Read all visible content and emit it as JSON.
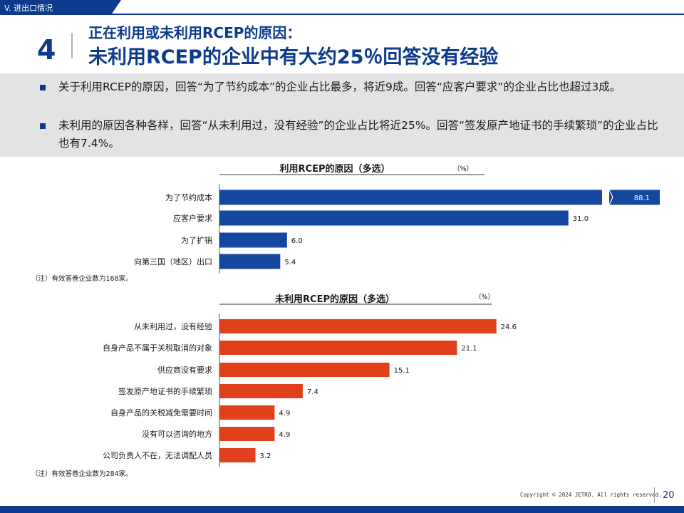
{
  "header": {
    "section_tab": "V. 进出口情况",
    "section_number": "4",
    "title_line1": "正在利用或未利用RCEP的原因：",
    "title_line2": "未利用RCEP的企业中有大约25％回答没有经验"
  },
  "summary": {
    "bullets": [
      "关于利用RCEP的原因，回答“为了节约成本”的企业占比最多，将近9成。回答“应客户要求”的企业占比也超过3成。",
      "未利用的原因各种各样，回答“从未利用过，没有经验”的企业占比将近25%。回答“签发原产地证书的手续繁琐”的企业占比也有7.4%。"
    ]
  },
  "colors": {
    "brand_blue": "#0d3a8c",
    "bar_blue": "#1546a0",
    "bar_red": "#e0401c"
  },
  "chart_data": [
    {
      "type": "bar",
      "orientation": "horizontal",
      "title": "利用RCEP的原因（多选）",
      "unit": "（%）",
      "categories": [
        "为了节约成本",
        "应客户要求",
        "为了扩销",
        "向第三国（地区）出口"
      ],
      "values": [
        88.1,
        31.0,
        6.0,
        5.4
      ],
      "labels": [
        "88.1",
        "31.0",
        "6.0",
        "5.4"
      ],
      "axis_break": true,
      "note": "（注）有效答卷企业数为168家。"
    },
    {
      "type": "bar",
      "orientation": "horizontal",
      "title": "未利用RCEP的原因（多选）",
      "unit": "（%）",
      "categories": [
        "从未利用过，没有经验",
        "自身产品不属于关税取消的对象",
        "供应商没有要求",
        "签发原产地证书的手续繁琐",
        "自身产品的关税减免需要时间",
        "没有可以咨询的地方",
        "公司负责人不在，无法调配人员"
      ],
      "values": [
        24.6,
        21.1,
        15.1,
        7.4,
        4.9,
        4.9,
        3.2
      ],
      "labels": [
        "24.6",
        "21.1",
        "15.1",
        "7.4",
        "4.9",
        "4.9",
        "3.2"
      ],
      "note": "（注）有效答卷企业数为284家。"
    }
  ],
  "footer": {
    "copyright": "Copyright © 2024 JETRO. All rights reserved.",
    "page_number": "20"
  }
}
